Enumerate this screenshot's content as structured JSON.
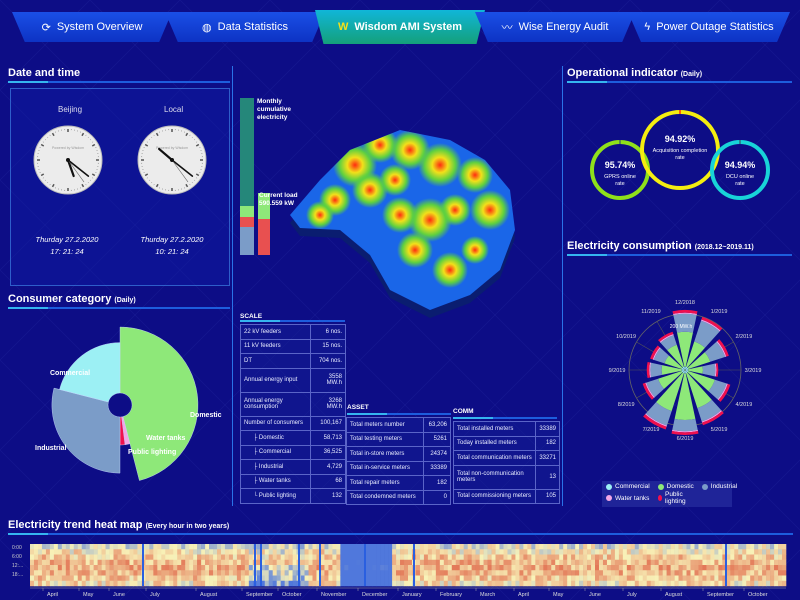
{
  "nav": {
    "tabs": [
      {
        "label": "System Overview",
        "icon": "refresh-icon",
        "active": false
      },
      {
        "label": "Data Statistics",
        "icon": "database-icon",
        "active": false
      },
      {
        "label": "Wisdom AMI System",
        "icon": "wisdom-logo-icon",
        "active": true
      },
      {
        "label": "Wise Energy Audit",
        "icon": "wave-icon",
        "active": false
      },
      {
        "label": "Power Outage Statistics",
        "icon": "lightning-icon",
        "active": false
      }
    ]
  },
  "datetime": {
    "title": "Date and time",
    "clocks": [
      {
        "city": "Beijing",
        "date": "Thurday  27.2.2020",
        "time": "17: 21: 24",
        "h": 17,
        "m": 21,
        "s": 24,
        "brand": "Powered by Wisdom"
      },
      {
        "city": "Local",
        "date": "Thurday  27.2.2020",
        "time": "10: 21: 24",
        "h": 10,
        "m": 21,
        "s": 24,
        "brand": "Powered by Wisdom"
      }
    ]
  },
  "center": {
    "monthly_label": "Monthly cumulative electricity",
    "current_load_label": "Current load",
    "current_load_value": "590.559 kW"
  },
  "consumer": {
    "title": "Consumer category",
    "sub": "(Daily)",
    "chart_data": {
      "type": "pie",
      "rose": true,
      "slices": [
        {
          "name": "Domestic",
          "value": 46,
          "color": "#8ee879"
        },
        {
          "name": "Water tanks",
          "value": 2,
          "color": "#f3a6e6"
        },
        {
          "name": "Public lighting",
          "value": 2,
          "color": "#f0104e"
        },
        {
          "name": "Industrial",
          "value": 29,
          "color": "#7b9cc8"
        },
        {
          "name": "Commercial",
          "value": 21,
          "color": "#9cf0f4"
        }
      ]
    }
  },
  "scale": {
    "title": "SCALE",
    "rows": [
      [
        "22 kV feeders",
        "6 nos."
      ],
      [
        "11 kV feeders",
        "15 nos."
      ],
      [
        "DT",
        "704 nos."
      ],
      [
        "Annual energy input",
        "3558 MW.h"
      ],
      [
        "Annual energy consumption",
        "3268 MW.h"
      ],
      [
        "Number of consumers",
        "100,167"
      ],
      [
        "├ Domestic",
        "58,713"
      ],
      [
        "├ Commercial",
        "36,525"
      ],
      [
        "├ Industrial",
        "4,729"
      ],
      [
        "├ Water tanks",
        "68"
      ],
      [
        "└ Public lighting",
        "132"
      ]
    ]
  },
  "asset": {
    "title": "ASSET",
    "rows": [
      [
        "Total meters number",
        "63,206"
      ],
      [
        "Total testing meters",
        "5261"
      ],
      [
        "Total in-store meters",
        "24374"
      ],
      [
        "Total in-service meters",
        "33389"
      ],
      [
        "Total repair meters",
        "182"
      ],
      [
        "Total condemned meters",
        "0"
      ]
    ]
  },
  "comm": {
    "title": "COMM",
    "rows": [
      [
        "Total installed meters",
        "33389"
      ],
      [
        "Today installed meters",
        "182"
      ],
      [
        "Total communication meters",
        "33271"
      ],
      [
        "Total non-communication meters",
        "13"
      ],
      [
        "Total commissioning meters",
        "105"
      ]
    ]
  },
  "operational": {
    "title": "Operational indicator",
    "sub": "(Daily)",
    "rings": [
      {
        "value": "95.74%",
        "label": "GPRS online rate",
        "pct": 95.74,
        "color": "#8fe01a"
      },
      {
        "value": "94.92%",
        "label": "Acquisition completion rate",
        "pct": 94.92,
        "color": "#f4ee10"
      },
      {
        "value": "94.94%",
        "label": "DCU online rate",
        "pct": 94.94,
        "color": "#18d4d8"
      }
    ]
  },
  "consumption": {
    "title": "Electricity consumption",
    "sub": "(2018.12~2019.11)",
    "chart_data": {
      "type": "bar",
      "polar": true,
      "unit_label": "200 MW.h",
      "axis_max": 300,
      "categories": [
        "12/2018",
        "1/2019",
        "2/2019",
        "3/2019",
        "4/2019",
        "5/2019",
        "6/2019",
        "7/2019",
        "8/2019",
        "9/2019",
        "10/2019",
        "11/2019"
      ],
      "series": [
        {
          "name": "Commercial",
          "color": "#9cf0f4",
          "values": [
            15,
            15,
            15,
            15,
            15,
            15,
            15,
            15,
            15,
            15,
            15,
            15
          ]
        },
        {
          "name": "Domestic",
          "color": "#8ee879",
          "values": [
            155,
            118,
            103,
            65,
            125,
            163,
            207,
            177,
            111,
            89,
            81,
            103
          ]
        },
        {
          "name": "Industrial",
          "color": "#7b9cc8",
          "values": [
            80,
            98,
            70,
            55,
            55,
            63,
            50,
            68,
            55,
            50,
            50,
            45
          ]
        },
        {
          "name": "Water tanks",
          "color": "#f3a6e6",
          "values": [
            5,
            5,
            5,
            5,
            5,
            5,
            5,
            5,
            5,
            5,
            5,
            5
          ]
        },
        {
          "name": "Public lighting",
          "color": "#f0104e",
          "values": [
            12,
            12,
            12,
            8,
            12,
            12,
            12,
            13,
            12,
            11,
            12,
            11
          ]
        }
      ]
    }
  },
  "heatmap": {
    "title": "Electricity trend heat map",
    "sub": "(Every hour in two years)",
    "chart_data": {
      "type": "heatmap",
      "y_ticks": [
        "0:00",
        "6:00",
        "12:...",
        "18:..."
      ],
      "months": [
        "April",
        "May",
        "June",
        "July",
        "August",
        "September",
        "October",
        "November",
        "December",
        "January",
        "February",
        "March",
        "April",
        "May",
        "June",
        "July",
        "August",
        "September",
        "October"
      ],
      "colors": {
        "high": "#e0674a",
        "mid": "#f8f2b8",
        "low": "#3f6fd8"
      }
    }
  }
}
